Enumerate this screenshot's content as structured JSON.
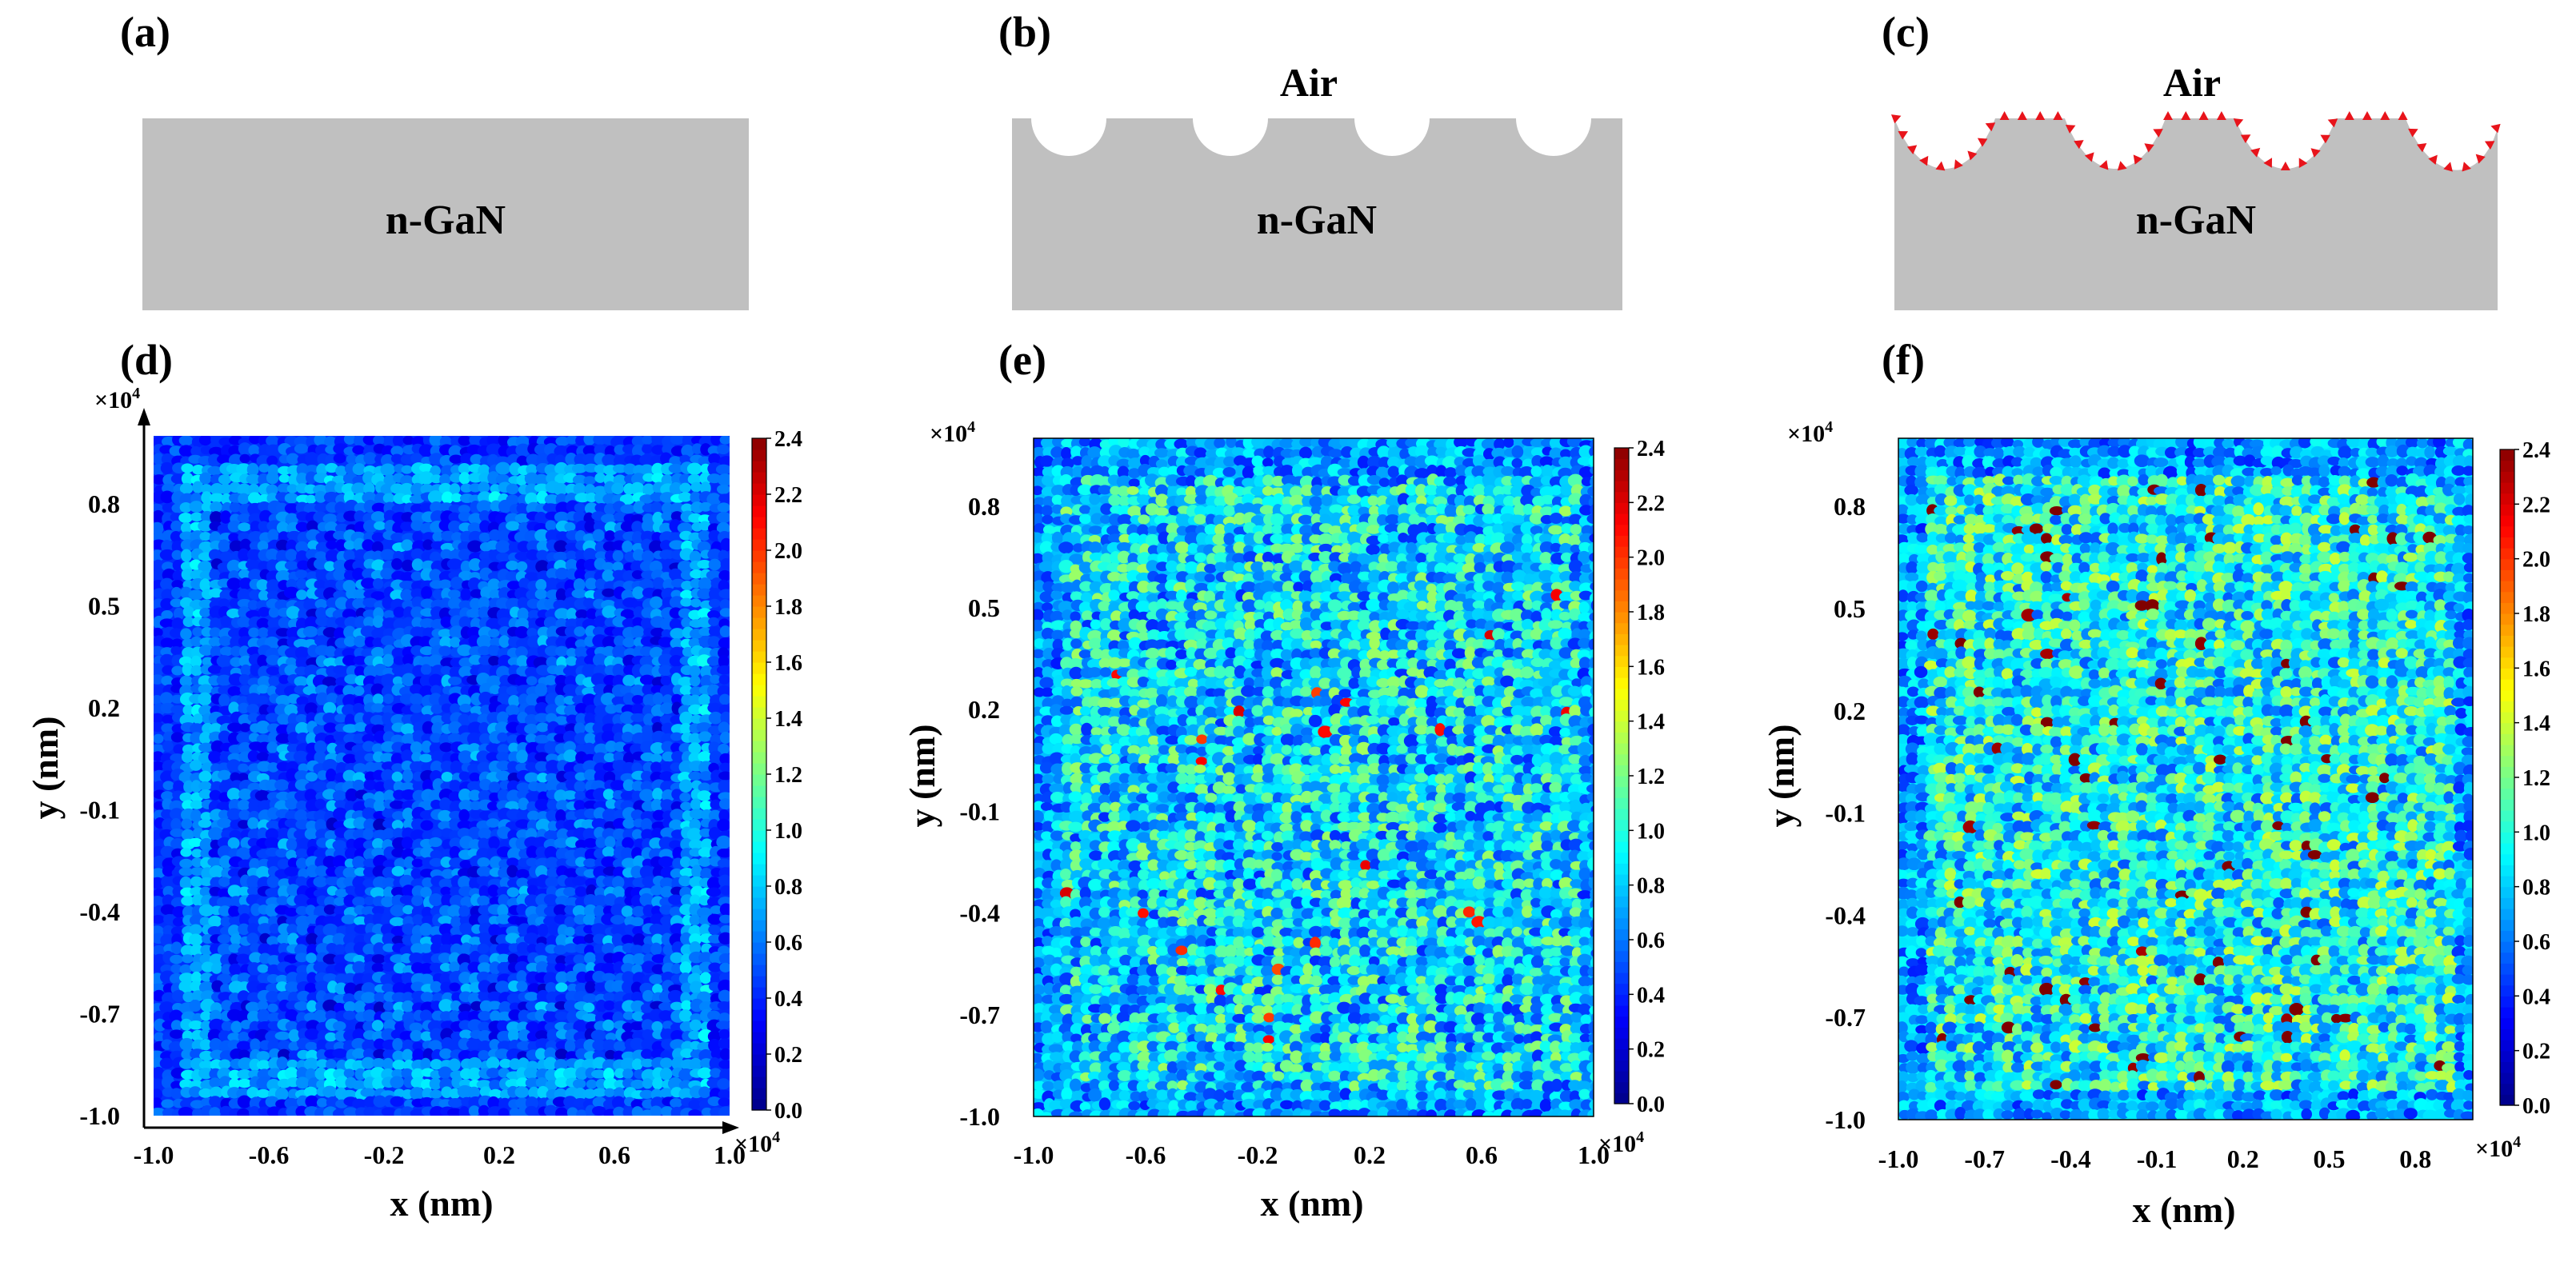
{
  "figure": {
    "panels": {
      "a": {
        "label": "(a)",
        "material": "n-GaN"
      },
      "b": {
        "label": "(b)",
        "material": "n-GaN",
        "ambient": "Air"
      },
      "c": {
        "label": "(c)",
        "material": "n-GaN",
        "ambient": "Air"
      }
    },
    "colors": {
      "substrate": "#c0c0c0",
      "particle": "#e8141b",
      "axis": "#000000",
      "colormap": [
        "#00008f",
        "#0000ff",
        "#0080ff",
        "#00ffff",
        "#80ff80",
        "#ffff00",
        "#ff8000",
        "#ff0000",
        "#800000"
      ]
    }
  },
  "chart_data": [
    {
      "type": "heatmap",
      "panel_label": "(d)",
      "xlabel": "x (nm)",
      "ylabel": "y (nm)",
      "x_multiplier": "×10",
      "y_multiplier": "×10",
      "multiplier_exponent": "4",
      "xlim": [
        -1.0,
        1.0
      ],
      "ylim": [
        -1.0,
        1.0
      ],
      "xticks": [
        "-1.0",
        "-0.6",
        "-0.2",
        "0.2",
        "0.6",
        "1.0"
      ],
      "yticks": [
        "-1.0",
        "-0.7",
        "-0.4",
        "-0.1",
        "0.2",
        "0.5",
        "0.8"
      ],
      "colorbar_range": [
        0.0,
        2.4
      ],
      "colorbar_ticks": [
        "0.0",
        "0.2",
        "0.4",
        "0.6",
        "0.8",
        "1.0",
        "1.2",
        "1.4",
        "1.6",
        "1.8",
        "2.0",
        "2.2",
        "2.4"
      ],
      "pattern": "periodic grid of bright features, mean intensity ≈ 0.55",
      "mean_intensity": 0.55
    },
    {
      "type": "heatmap",
      "panel_label": "(e)",
      "xlabel": "x (nm)",
      "ylabel": "y (nm)",
      "x_multiplier": "×10",
      "y_multiplier": "×10",
      "multiplier_exponent": "4",
      "xlim": [
        -1.0,
        1.0
      ],
      "ylim": [
        -1.0,
        1.0
      ],
      "xticks": [
        "-1.0",
        "-0.6",
        "-0.2",
        "0.2",
        "0.6",
        "1.0"
      ],
      "yticks": [
        "-1.0",
        "-0.7",
        "-0.4",
        "-0.1",
        "0.2",
        "0.5",
        "0.8"
      ],
      "colorbar_range": [
        0.0,
        2.4
      ],
      "colorbar_ticks": [
        "0.0",
        "0.2",
        "0.4",
        "0.6",
        "0.8",
        "1.0",
        "1.2",
        "1.4",
        "1.6",
        "1.8",
        "2.0",
        "2.2",
        "2.4"
      ],
      "pattern": "random speckle, mean intensity ≈ 1.0",
      "mean_intensity": 1.0
    },
    {
      "type": "heatmap",
      "panel_label": "(f)",
      "xlabel": "x (nm)",
      "ylabel": "y (nm)",
      "x_multiplier": "×10",
      "y_multiplier": "×10",
      "multiplier_exponent": "4",
      "xlim": [
        -1.0,
        1.0
      ],
      "ylim": [
        -1.0,
        1.0
      ],
      "xticks": [
        "-1.0",
        "-0.7",
        "-0.4",
        "-0.1",
        "0.2",
        "0.5",
        "0.8"
      ],
      "yticks": [
        "-1.0",
        "-0.7",
        "-0.4",
        "-0.1",
        "0.2",
        "0.5",
        "0.8"
      ],
      "colorbar_range": [
        0.0,
        2.4
      ],
      "colorbar_ticks": [
        "0.0",
        "0.2",
        "0.4",
        "0.6",
        "0.8",
        "1.0",
        "1.2",
        "1.4",
        "1.6",
        "1.8",
        "2.0",
        "2.2",
        "2.4"
      ],
      "pattern": "random speckle with dark-red hot spots, mean intensity ≈ 1.15",
      "mean_intensity": 1.15
    }
  ]
}
